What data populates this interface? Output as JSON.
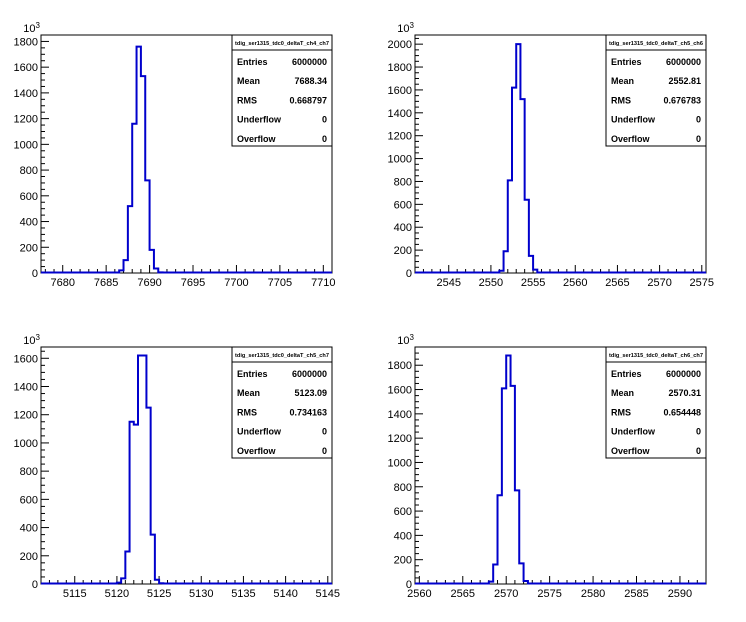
{
  "chart_data": [
    {
      "type": "histogram",
      "title": "tdig_ser1315_tdc0_deltaT_ch4_ch7",
      "x_range": [
        7677.5,
        7711
      ],
      "ylim": [
        0,
        1850
      ],
      "y_exponent": "10^3",
      "x_ticks": [
        7680,
        7685,
        7690,
        7695,
        7700,
        7705,
        7710
      ],
      "y_ticks": [
        0,
        200,
        400,
        600,
        800,
        1000,
        1200,
        1400,
        1600,
        1800
      ],
      "bin_width": 0.5,
      "bins": [
        {
          "x": 7685.5,
          "y": 0
        },
        {
          "x": 7686.0,
          "y": 3
        },
        {
          "x": 7686.5,
          "y": 20
        },
        {
          "x": 7687.0,
          "y": 100
        },
        {
          "x": 7687.5,
          "y": 520
        },
        {
          "x": 7688.0,
          "y": 1160
        },
        {
          "x": 7688.5,
          "y": 1760
        },
        {
          "x": 7689.0,
          "y": 1530
        },
        {
          "x": 7689.5,
          "y": 720
        },
        {
          "x": 7690.0,
          "y": 180
        },
        {
          "x": 7690.5,
          "y": 35
        },
        {
          "x": 7691.0,
          "y": 5
        },
        {
          "x": 7691.5,
          "y": 0
        }
      ],
      "stats": [
        {
          "label": "Entries",
          "value": "6000000"
        },
        {
          "label": "Mean",
          "value": "7688.34"
        },
        {
          "label": "RMS",
          "value": "0.668797"
        },
        {
          "label": "Underflow",
          "value": "0"
        },
        {
          "label": "Overflow",
          "value": "0"
        }
      ]
    },
    {
      "type": "histogram",
      "title": "tdig_ser1315_tdc0_deltaT_ch5_ch6",
      "x_range": [
        2541,
        2575.5
      ],
      "ylim": [
        0,
        2080
      ],
      "y_exponent": "10^3",
      "x_ticks": [
        2545,
        2550,
        2555,
        2560,
        2565,
        2570,
        2575
      ],
      "y_ticks": [
        0,
        200,
        400,
        600,
        800,
        1000,
        1200,
        1400,
        1600,
        1800,
        2000
      ],
      "bin_width": 0.5,
      "bins": [
        {
          "x": 2550.5,
          "y": 0
        },
        {
          "x": 2551.0,
          "y": 20
        },
        {
          "x": 2551.5,
          "y": 190
        },
        {
          "x": 2552.0,
          "y": 810
        },
        {
          "x": 2552.5,
          "y": 1620
        },
        {
          "x": 2553.0,
          "y": 2000
        },
        {
          "x": 2553.5,
          "y": 1520
        },
        {
          "x": 2554.0,
          "y": 640
        },
        {
          "x": 2554.5,
          "y": 150
        },
        {
          "x": 2555.0,
          "y": 30
        },
        {
          "x": 2555.5,
          "y": 3
        },
        {
          "x": 2556.0,
          "y": 0
        }
      ],
      "stats": [
        {
          "label": "Entries",
          "value": "6000000"
        },
        {
          "label": "Mean",
          "value": "2552.81"
        },
        {
          "label": "RMS",
          "value": "0.676783"
        },
        {
          "label": "Underflow",
          "value": "0"
        },
        {
          "label": "Overflow",
          "value": "0"
        }
      ]
    },
    {
      "type": "histogram",
      "title": "tdig_ser1315_tdc0_deltaT_ch5_ch7",
      "x_range": [
        5111,
        5145.5
      ],
      "ylim": [
        0,
        1680
      ],
      "y_exponent": "10^3",
      "x_ticks": [
        5115,
        5120,
        5125,
        5130,
        5135,
        5140,
        5145
      ],
      "y_ticks": [
        0,
        200,
        400,
        600,
        800,
        1000,
        1200,
        1400,
        1600
      ],
      "bin_width": 0.5,
      "bins": [
        {
          "x": 5119.5,
          "y": 0
        },
        {
          "x": 5120.0,
          "y": 10
        },
        {
          "x": 5120.5,
          "y": 40
        },
        {
          "x": 5121.0,
          "y": 230
        },
        {
          "x": 5121.5,
          "y": 1150
        },
        {
          "x": 5122.0,
          "y": 1130
        },
        {
          "x": 5122.5,
          "y": 1620
        },
        {
          "x": 5123.0,
          "y": 1620
        },
        {
          "x": 5123.5,
          "y": 1250
        },
        {
          "x": 5124.0,
          "y": 350
        },
        {
          "x": 5124.5,
          "y": 30
        },
        {
          "x": 5125.0,
          "y": 5
        },
        {
          "x": 5125.5,
          "y": 0
        }
      ],
      "stats": [
        {
          "label": "Entries",
          "value": "6000000"
        },
        {
          "label": "Mean",
          "value": "5123.09"
        },
        {
          "label": "RMS",
          "value": "0.734163"
        },
        {
          "label": "Underflow",
          "value": "0"
        },
        {
          "label": "Overflow",
          "value": "0"
        }
      ]
    },
    {
      "type": "histogram",
      "title": "tdig_ser1315_tdc0_deltaT_ch6_ch7",
      "x_range": [
        2559.5,
        2593
      ],
      "ylim": [
        0,
        1950
      ],
      "y_exponent": "10^3",
      "x_ticks": [
        2560,
        2565,
        2570,
        2575,
        2580,
        2585,
        2590
      ],
      "y_ticks": [
        0,
        200,
        400,
        600,
        800,
        1000,
        1200,
        1400,
        1600,
        1800
      ],
      "bin_width": 0.5,
      "bins": [
        {
          "x": 2567.5,
          "y": 0
        },
        {
          "x": 2568.0,
          "y": 20
        },
        {
          "x": 2568.5,
          "y": 160
        },
        {
          "x": 2569.0,
          "y": 730
        },
        {
          "x": 2569.5,
          "y": 1610
        },
        {
          "x": 2570.0,
          "y": 1880
        },
        {
          "x": 2570.5,
          "y": 1630
        },
        {
          "x": 2571.0,
          "y": 770
        },
        {
          "x": 2571.5,
          "y": 170
        },
        {
          "x": 2572.0,
          "y": 25
        },
        {
          "x": 2572.5,
          "y": 3
        },
        {
          "x": 2573.0,
          "y": 0
        }
      ],
      "stats": [
        {
          "label": "Entries",
          "value": "6000000"
        },
        {
          "label": "Mean",
          "value": "2570.31"
        },
        {
          "label": "RMS",
          "value": "0.654448"
        },
        {
          "label": "Underflow",
          "value": "0"
        },
        {
          "label": "Overflow",
          "value": "0"
        }
      ]
    }
  ],
  "colors": {
    "line": "#0000cc",
    "axis": "#000000",
    "background": "#ffffff"
  }
}
